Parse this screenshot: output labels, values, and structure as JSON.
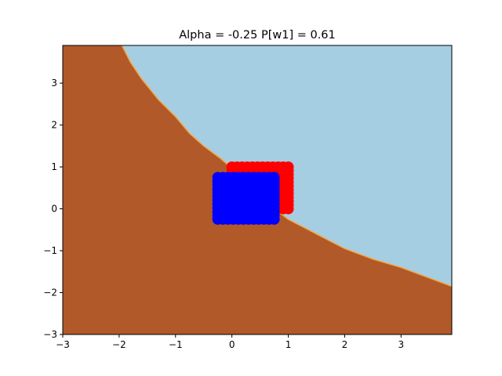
{
  "chart_data": {
    "type": "scatter",
    "title": "Alpha = -0.25 P[w1] = 0.61",
    "xlabel": "",
    "ylabel": "",
    "xlim": [
      -3,
      3.9
    ],
    "ylim": [
      -3,
      3.9
    ],
    "xticks": [
      -3,
      -2,
      -1,
      0,
      1,
      2,
      3
    ],
    "yticks": [
      -3,
      -2,
      -1,
      0,
      1,
      2,
      3
    ],
    "grid": false,
    "decision_regions": {
      "colors": {
        "class_upper": "#a6cee3",
        "class_lower": "#b15928",
        "boundary": "#f4a640"
      },
      "boundary": [
        [
          -1.95,
          3.9
        ],
        [
          -1.8,
          3.5
        ],
        [
          -1.6,
          3.1
        ],
        [
          -1.3,
          2.6
        ],
        [
          -1.0,
          2.2
        ],
        [
          -0.75,
          1.8
        ],
        [
          -0.5,
          1.5
        ],
        [
          -0.2,
          1.2
        ],
        [
          0.1,
          0.85
        ],
        [
          0.4,
          0.45
        ],
        [
          0.7,
          0.05
        ],
        [
          1.0,
          -0.25
        ],
        [
          1.5,
          -0.6
        ],
        [
          2.0,
          -0.95
        ],
        [
          2.5,
          -1.2
        ],
        [
          3.0,
          -1.4
        ],
        [
          3.5,
          -1.65
        ],
        [
          3.9,
          -1.85
        ]
      ]
    },
    "series": [
      {
        "color": "#ff0000",
        "x_range": [
          0.0,
          1.0
        ],
        "y_range": [
          0.0,
          1.0
        ],
        "grid_n": 12
      },
      {
        "color": "#0000ff",
        "x_range": [
          -0.25,
          0.75
        ],
        "y_range": [
          -0.25,
          0.75
        ],
        "grid_n": 12
      }
    ]
  }
}
